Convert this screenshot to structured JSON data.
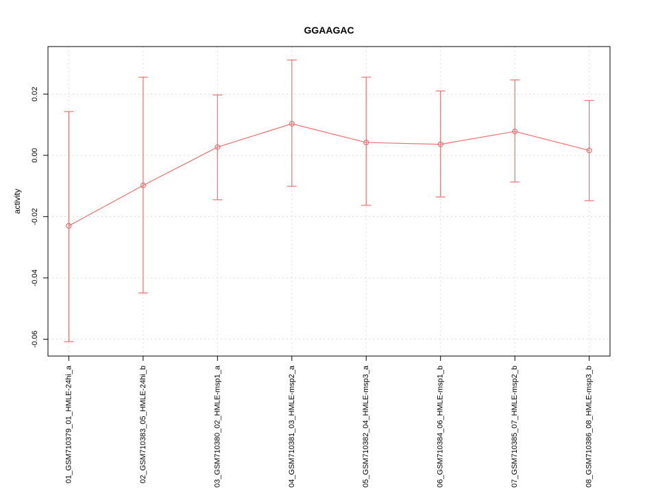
{
  "chart_data": {
    "type": "line",
    "title": "GGAAGAC",
    "xlabel": "",
    "ylabel": "activity",
    "categories": [
      "01_GSM710379_01_HMLE-24hi_a",
      "02_GSM710383_05_HMLE-24hi_b",
      "03_GSM710380_02_HMLE-msp1_a",
      "04_GSM710381_03_HMLE-msp2_a",
      "05_GSM710382_04_HMLE-msp3_a",
      "06_GSM710384_06_HMLE-msp1_b",
      "07_GSM710385_07_HMLE-msp2_b",
      "08_GSM710386_08_HMLE-msp3_b"
    ],
    "series": [
      {
        "name": "GGAAGAC activity",
        "values": [
          -0.023,
          -0.0098,
          0.0027,
          0.0103,
          0.0042,
          0.0036,
          0.0078,
          0.0016
        ],
        "err_low": [
          -0.0608,
          -0.0449,
          -0.0145,
          -0.0101,
          -0.0163,
          -0.0136,
          -0.0087,
          -0.0148
        ],
        "err_high": [
          0.0143,
          0.0255,
          0.0197,
          0.0311,
          0.0255,
          0.021,
          0.0246,
          0.0179
        ]
      }
    ],
    "yticks": [
      0.02,
      0,
      -0.02,
      -0.04,
      -0.06
    ],
    "ytick_labels": [
      "0.02",
      "0.00",
      "-0.02",
      "-0.04",
      "-0.06"
    ],
    "ylim": [
      -0.0655,
      0.0355
    ],
    "xlim": [
      0.72,
      8.28
    ],
    "grid": true,
    "legend_position": "none",
    "marker": "open-circle",
    "colors": {
      "series": "#f07070",
      "grid": "#dcdcdc",
      "axis": "#000000",
      "background": "#ffffff"
    }
  }
}
